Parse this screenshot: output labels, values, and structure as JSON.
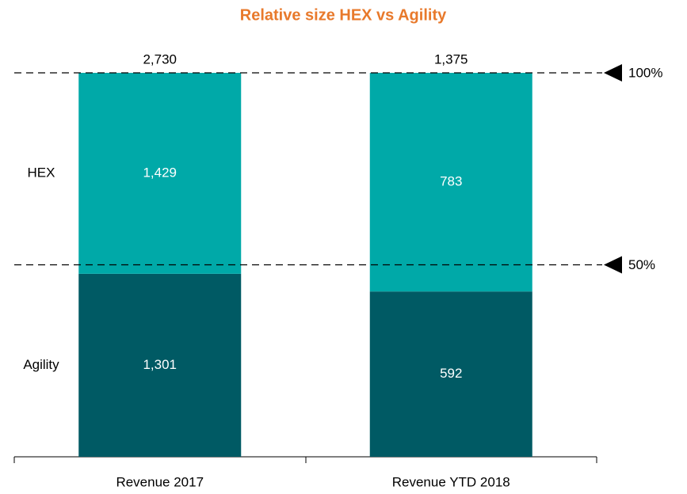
{
  "chart_data": {
    "type": "bar",
    "stacking": "percent",
    "title": "Relative size HEX vs Agility",
    "categories": [
      "Revenue 2017",
      "Revenue YTD 2018"
    ],
    "series": [
      {
        "name": "Agility",
        "color": "#005a64",
        "values": [
          1301,
          592
        ],
        "value_labels": [
          "1,301",
          "592"
        ]
      },
      {
        "name": "HEX",
        "color": "#00a9a8",
        "values": [
          1429,
          783
        ],
        "value_labels": [
          "1,429",
          "783"
        ]
      }
    ],
    "totals": [
      2730,
      1375
    ],
    "total_labels": [
      "2,730",
      "1,375"
    ],
    "ylim": [
      0,
      100
    ],
    "reference_lines": [
      {
        "value": 100,
        "label": "100%"
      },
      {
        "value": 50,
        "label": "50%"
      }
    ]
  }
}
